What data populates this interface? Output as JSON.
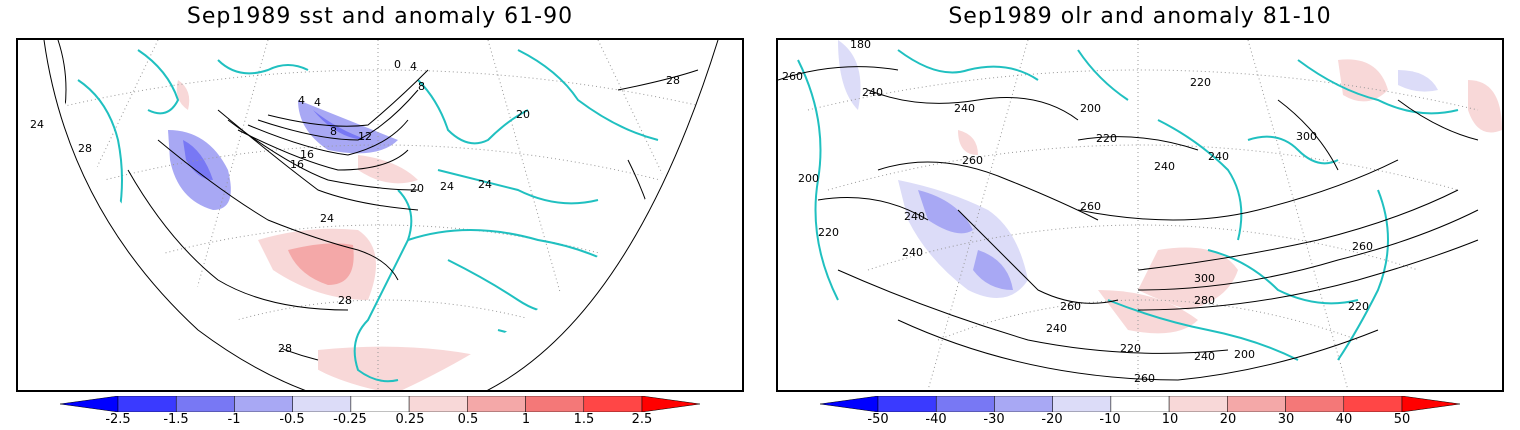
{
  "panels": [
    {
      "title": "Sep1989 sst and anomaly 61-90",
      "contour_labels": [
        "24",
        "28",
        "0",
        "4",
        "8",
        "12",
        "16",
        "20",
        "24",
        "24",
        "24",
        "4",
        "20",
        "16",
        "28",
        "28",
        "28",
        "4",
        "8"
      ],
      "colorbar": {
        "ticks": [
          "-2.5",
          "-1.5",
          "-1",
          "-0.5",
          "-0.25",
          "0.25",
          "0.5",
          "1",
          "1.5",
          "2.5"
        ],
        "colors": [
          "#0000ff",
          "#3a3aff",
          "#7878f4",
          "#a8a8f4",
          "#dcdcf8",
          "#ffffff",
          "#f8d8d8",
          "#f4a8a8",
          "#f47878",
          "#ff4646",
          "#ff0000"
        ]
      }
    },
    {
      "title": "Sep1989 olr and anomaly 81-10",
      "contour_labels": [
        "180",
        "260",
        "240",
        "240",
        "200",
        "220",
        "220",
        "260",
        "240",
        "240",
        "220",
        "200",
        "260",
        "240",
        "240",
        "300",
        "300",
        "260",
        "280",
        "260",
        "240",
        "220",
        "200",
        "240",
        "220",
        "260"
      ],
      "colorbar": {
        "ticks": [
          "-50",
          "-40",
          "-30",
          "-20",
          "-10",
          "10",
          "20",
          "30",
          "40",
          "50"
        ],
        "colors": [
          "#0000ff",
          "#3a3aff",
          "#7878f4",
          "#a8a8f4",
          "#dcdcf8",
          "#ffffff",
          "#f8d8d8",
          "#f4a8a8",
          "#f47878",
          "#ff4646",
          "#ff0000"
        ]
      }
    }
  ],
  "colors": {
    "coastline": "#20c0c0",
    "contour": "#000000",
    "grid": "#999999"
  }
}
